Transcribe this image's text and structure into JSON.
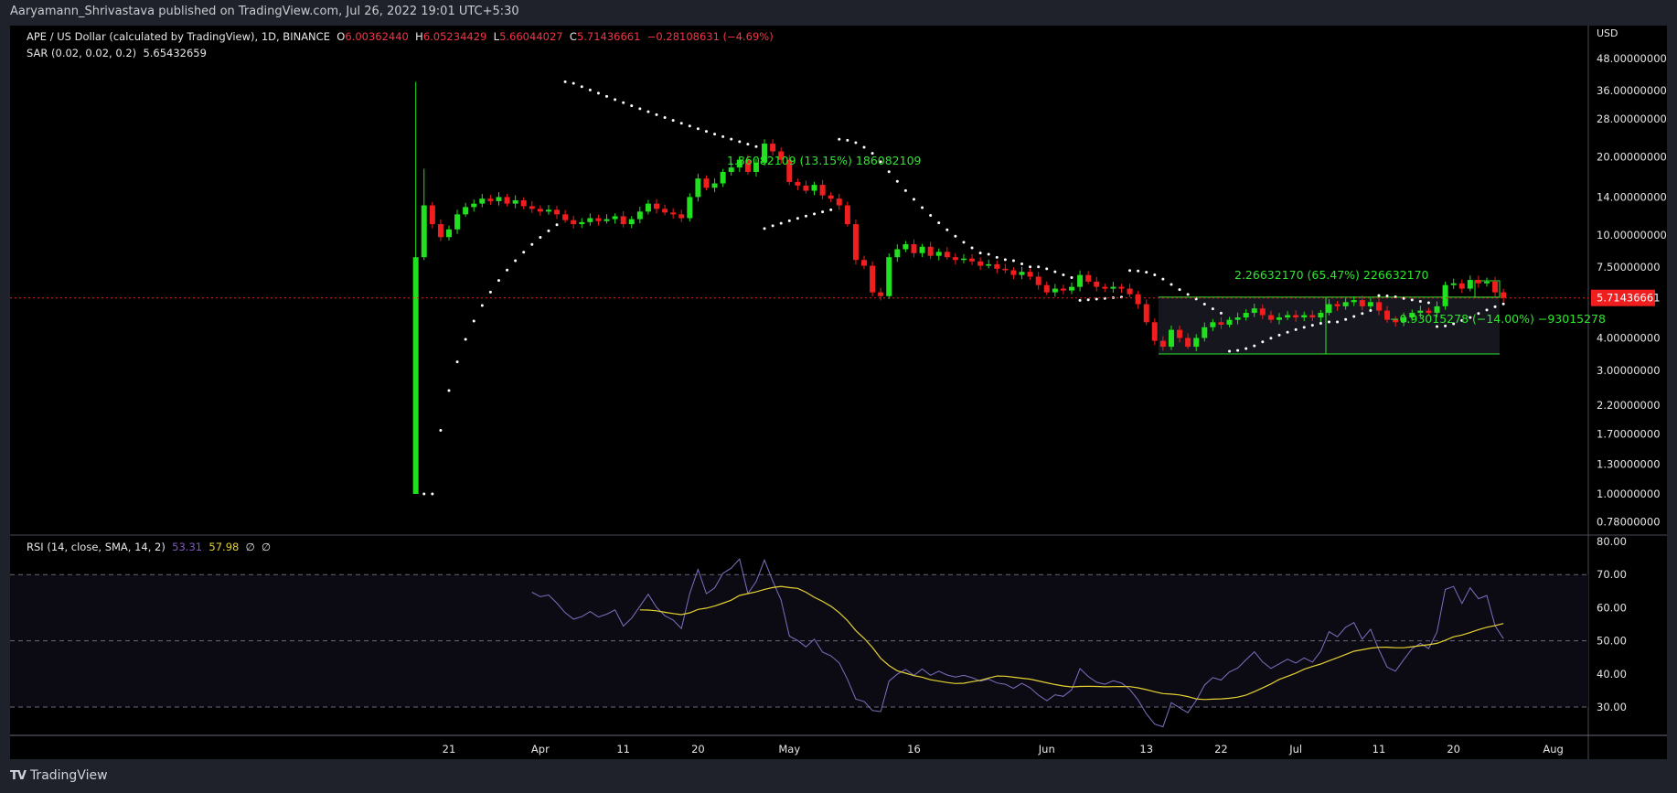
{
  "publish_line": "Aaryamann_Shrivastava published on TradingView.com, Jul 26, 2022 19:01 UTC+5:30",
  "legend": {
    "symbol": "APE / US Dollar (calculated by TradingView), 1D, BINANCE",
    "o_label": "O",
    "o": "6.00362440",
    "h_label": "H",
    "h": "6.05234429",
    "l_label": "L",
    "l": "5.66044027",
    "c_label": "C",
    "c": "5.71436661",
    "change": "−0.28108631 (−4.69%)",
    "sar": "SAR (0.02, 0.02, 0.2)",
    "sar_value": "5.65432659",
    "rsi": "RSI (14, close, SMA, 14, 2)",
    "rsi_value": "53.31",
    "rsi_ma_value": "57.98",
    "rsi_extra1": "∅",
    "rsi_extra2": "∅"
  },
  "price_axis": {
    "currency": "USD",
    "ticks": [
      "48.00000000",
      "36.00000000",
      "28.00000000",
      "20.00000000",
      "14.00000000",
      "10.00000000",
      "7.50000000",
      "4.00000000",
      "3.00000000",
      "2.20000000",
      "1.70000000",
      "1.30000000",
      "1.00000000",
      "0.78000000"
    ],
    "last_price": "5.71436661"
  },
  "rsi_axis": {
    "ticks": [
      "80.00",
      "70.00",
      "60.00",
      "50.00",
      "40.00",
      "30.00"
    ]
  },
  "time_axis": {
    "ticks": [
      {
        "label": "21",
        "day": 4
      },
      {
        "label": "Apr",
        "day": 15
      },
      {
        "label": "11",
        "day": 25
      },
      {
        "label": "20",
        "day": 34
      },
      {
        "label": "May",
        "day": 45
      },
      {
        "label": "16",
        "day": 60
      },
      {
        "label": "Jun",
        "day": 76
      },
      {
        "label": "13",
        "day": 88
      },
      {
        "label": "22",
        "day": 97
      },
      {
        "label": "Jul",
        "day": 106
      },
      {
        "label": "11",
        "day": 116
      },
      {
        "label": "20",
        "day": 125
      },
      {
        "label": "Aug",
        "day": 137
      }
    ]
  },
  "measures": [
    {
      "text": "1.86082109 (13.15%) 186082109"
    },
    {
      "text": "2.26632170 (65.47%) 226632170"
    },
    {
      "text": "−0.93015278 (−14.00%) −93015278"
    }
  ],
  "colors": {
    "up": "#22e01f",
    "down": "#f01e1e",
    "sar": "#ffffff",
    "rsi": "#7e6fc0",
    "rsi_ma": "#e5d132",
    "measure": "#2ee62e"
  },
  "footer": {
    "brand": "TradingView",
    "logo": "TV"
  },
  "chart_data": {
    "type": "candlestick",
    "start_date": "2022-03-17",
    "first_candle": {
      "open": 1.0,
      "high": 39.0,
      "low": 1.0
    },
    "closes": [
      8.2,
      13.0,
      11.0,
      9.8,
      10.5,
      12.0,
      12.8,
      13.2,
      13.8,
      13.5,
      14.0,
      13.2,
      13.6,
      12.9,
      12.6,
      12.3,
      12.5,
      12.0,
      11.4,
      11.0,
      11.2,
      11.6,
      11.3,
      11.5,
      11.8,
      11.0,
      11.5,
      12.3,
      13.2,
      12.6,
      12.2,
      12.0,
      11.6,
      14.0,
      16.5,
      15.2,
      15.8,
      17.5,
      18.2,
      19.5,
      17.5,
      19.0,
      22.5,
      21.0,
      19.5,
      16.0,
      15.5,
      14.8,
      15.6,
      14.2,
      13.8,
      13.0,
      11.0,
      8.0,
      7.6,
      6.0,
      5.8,
      8.2,
      8.8,
      9.2,
      8.5,
      9.0,
      8.3,
      8.6,
      8.2,
      8.0,
      8.1,
      7.9,
      7.6,
      7.7,
      7.4,
      7.3,
      7.0,
      7.2,
      6.9,
      6.4,
      6.0,
      6.2,
      6.1,
      6.3,
      7.0,
      6.6,
      6.3,
      6.2,
      6.3,
      6.2,
      5.9,
      5.4,
      4.6,
      3.9,
      3.7,
      4.3,
      4.0,
      3.7,
      4.0,
      4.4,
      4.6,
      4.5,
      4.7,
      4.8,
      5.0,
      5.2,
      4.9,
      4.7,
      4.8,
      4.9,
      4.8,
      4.9,
      4.8,
      5.0,
      5.4,
      5.3,
      5.5,
      5.6,
      5.3,
      5.5,
      5.1,
      4.7,
      4.6,
      4.8,
      5.0,
      5.1,
      5.0,
      5.3,
      6.4,
      6.5,
      6.2,
      6.7,
      6.5,
      6.6,
      6.0,
      5.71
    ],
    "yscale": "log",
    "ylim": [
      0.7,
      55
    ],
    "rsi_levels": [
      70,
      50,
      30
    ]
  }
}
